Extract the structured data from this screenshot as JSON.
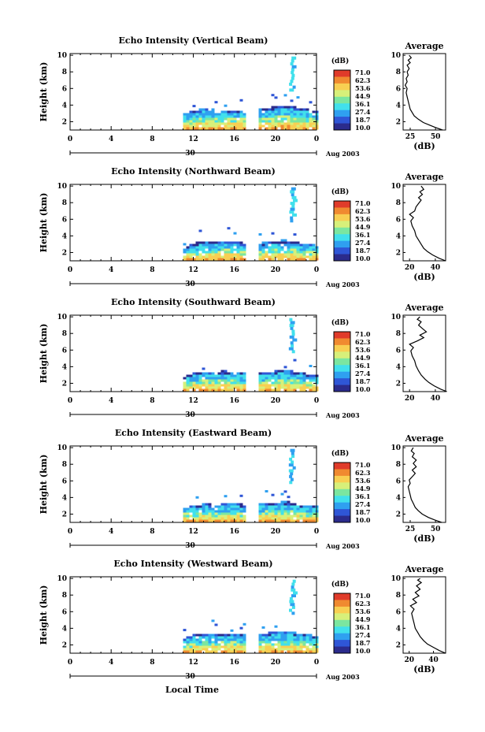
{
  "figure": {
    "xlabel": "Local Time",
    "date_label": "Aug 2003",
    "day_label": "30"
  },
  "colorbar": {
    "unit": "(dB)",
    "ticks": [
      "71.0",
      "62.3",
      "53.6",
      "44.9",
      "36.1",
      "27.4",
      "18.7",
      "10.0"
    ],
    "colors": [
      "#2b2b8c",
      "#2f56d6",
      "#2fa0f0",
      "#41e0ec",
      "#7be6a0",
      "#d7f07a",
      "#f8cf52",
      "#f08a30",
      "#e03b2a"
    ]
  },
  "chart_data": [
    {
      "type": "heatmap",
      "title": "Echo Intensity (Vertical Beam)",
      "ylabel": "Height (km)",
      "xticks": [
        "0",
        "4",
        "8",
        "12",
        "16",
        "20",
        "0"
      ],
      "yticks": [
        "2",
        "4",
        "6",
        "8",
        "10"
      ],
      "xlim": [
        0,
        24
      ],
      "ylim": [
        1,
        10.2
      ],
      "data_gap_hours": [
        17.0,
        18.1
      ],
      "echo_top_km": [
        [
          11.0,
          2.8
        ],
        [
          12.0,
          3.2
        ],
        [
          13.0,
          3.5
        ],
        [
          14.0,
          3.3
        ],
        [
          15.0,
          3.3
        ],
        [
          16.0,
          3.3
        ],
        [
          17.0,
          3.2
        ],
        [
          18.2,
          3.4
        ],
        [
          19.0,
          3.5
        ],
        [
          20.0,
          3.7
        ],
        [
          21.0,
          3.9
        ],
        [
          22.0,
          3.6
        ],
        [
          23.0,
          3.4
        ],
        [
          24.0,
          3.1
        ]
      ],
      "profile": {
        "title": "Average",
        "xlabel": "(dB)",
        "xticks": [
          "25",
          "50"
        ],
        "xlim": [
          18,
          60
        ],
        "ylim": [
          1,
          10.2
        ],
        "points": [
          [
            57,
            1.0
          ],
          [
            50,
            1.3
          ],
          [
            44,
            1.6
          ],
          [
            38,
            1.9
          ],
          [
            33,
            2.3
          ],
          [
            29,
            2.7
          ],
          [
            27,
            3.1
          ],
          [
            25,
            3.5
          ],
          [
            24,
            4.0
          ],
          [
            23,
            4.5
          ],
          [
            22,
            5.0
          ],
          [
            21,
            5.5
          ],
          [
            22,
            6.0
          ],
          [
            20,
            6.4
          ],
          [
            22,
            6.8
          ],
          [
            21,
            7.2
          ],
          [
            23,
            7.6
          ],
          [
            22,
            8.0
          ],
          [
            24,
            8.4
          ],
          [
            22,
            8.8
          ],
          [
            25,
            9.1
          ],
          [
            23,
            9.4
          ],
          [
            26,
            9.7
          ],
          [
            24,
            10.0
          ]
        ]
      }
    },
    {
      "type": "heatmap",
      "title": "Echo Intensity (Northward Beam)",
      "ylabel": "Height (km)",
      "xticks": [
        "0",
        "4",
        "8",
        "12",
        "16",
        "20",
        "0"
      ],
      "yticks": [
        "2",
        "4",
        "6",
        "8",
        "10"
      ],
      "xlim": [
        0,
        24
      ],
      "ylim": [
        1,
        10.2
      ],
      "data_gap_hours": [
        17.0,
        18.1
      ],
      "echo_top_km": [
        [
          11.0,
          2.6
        ],
        [
          12.0,
          3.0
        ],
        [
          13.0,
          3.2
        ],
        [
          14.0,
          3.1
        ],
        [
          15.0,
          3.2
        ],
        [
          16.0,
          3.1
        ],
        [
          17.0,
          3.0
        ],
        [
          18.2,
          3.0
        ],
        [
          19.0,
          3.1
        ],
        [
          20.0,
          3.3
        ],
        [
          21.0,
          3.4
        ],
        [
          22.0,
          3.1
        ],
        [
          23.0,
          2.9
        ],
        [
          24.0,
          2.7
        ]
      ],
      "profile": {
        "title": "Average",
        "xlabel": "(dB)",
        "xticks": [
          "20",
          "40"
        ],
        "xlim": [
          15,
          48
        ],
        "ylim": [
          1,
          10.2
        ],
        "points": [
          [
            48,
            1.0
          ],
          [
            43,
            1.3
          ],
          [
            38,
            1.7
          ],
          [
            34,
            2.1
          ],
          [
            31,
            2.5
          ],
          [
            29,
            3.0
          ],
          [
            27,
            3.5
          ],
          [
            25,
            4.0
          ],
          [
            24,
            4.6
          ],
          [
            22,
            5.2
          ],
          [
            21,
            5.8
          ],
          [
            23,
            6.2
          ],
          [
            20,
            6.6
          ],
          [
            24,
            7.0
          ],
          [
            25,
            7.5
          ],
          [
            27,
            7.9
          ],
          [
            29,
            8.3
          ],
          [
            27,
            8.6
          ],
          [
            30,
            9.0
          ],
          [
            28,
            9.3
          ],
          [
            31,
            9.6
          ],
          [
            29,
            10.0
          ]
        ]
      }
    },
    {
      "type": "heatmap",
      "title": "Echo Intensity (Southward Beam)",
      "ylabel": "Height (km)",
      "xticks": [
        "0",
        "4",
        "8",
        "12",
        "16",
        "20",
        "0"
      ],
      "yticks": [
        "2",
        "4",
        "6",
        "8",
        "10"
      ],
      "xlim": [
        0,
        24
      ],
      "ylim": [
        1,
        10.2
      ],
      "data_gap_hours": [
        17.0,
        18.1
      ],
      "echo_top_km": [
        [
          11.0,
          2.7
        ],
        [
          12.0,
          3.1
        ],
        [
          13.0,
          3.3
        ],
        [
          14.0,
          3.2
        ],
        [
          15.0,
          3.4
        ],
        [
          16.0,
          3.2
        ],
        [
          17.0,
          3.1
        ],
        [
          18.2,
          3.1
        ],
        [
          19.0,
          3.2
        ],
        [
          20.0,
          3.4
        ],
        [
          21.0,
          3.5
        ],
        [
          22.0,
          3.2
        ],
        [
          23.0,
          3.0
        ],
        [
          24.0,
          2.8
        ]
      ],
      "profile": {
        "title": "Average",
        "xlabel": "",
        "xticks": [
          "20",
          "40"
        ],
        "xlim": [
          15,
          48
        ],
        "ylim": [
          1,
          10.2
        ],
        "points": [
          [
            49,
            1.0
          ],
          [
            44,
            1.3
          ],
          [
            39,
            1.7
          ],
          [
            35,
            2.1
          ],
          [
            32,
            2.5
          ],
          [
            29,
            3.0
          ],
          [
            27,
            3.5
          ],
          [
            25,
            4.1
          ],
          [
            24,
            4.7
          ],
          [
            22,
            5.3
          ],
          [
            21,
            5.9
          ],
          [
            23,
            6.3
          ],
          [
            20,
            6.7
          ],
          [
            26,
            7.1
          ],
          [
            31,
            7.5
          ],
          [
            28,
            7.8
          ],
          [
            33,
            8.2
          ],
          [
            30,
            8.6
          ],
          [
            27,
            9.0
          ],
          [
            29,
            9.4
          ],
          [
            26,
            9.7
          ],
          [
            28,
            10.0
          ]
        ]
      }
    },
    {
      "type": "heatmap",
      "title": "Echo Intensity (Eastward Beam)",
      "ylabel": "Height (km)",
      "xticks": [
        "0",
        "4",
        "8",
        "12",
        "16",
        "20",
        "0"
      ],
      "yticks": [
        "2",
        "4",
        "6",
        "8",
        "10"
      ],
      "xlim": [
        0,
        24
      ],
      "ylim": [
        1,
        10.2
      ],
      "data_gap_hours": [
        17.0,
        18.1
      ],
      "echo_top_km": [
        [
          11.0,
          2.7
        ],
        [
          12.0,
          3.0
        ],
        [
          13.0,
          3.1
        ],
        [
          14.0,
          3.0
        ],
        [
          15.0,
          3.1
        ],
        [
          16.0,
          3.1
        ],
        [
          17.0,
          3.0
        ],
        [
          18.2,
          3.1
        ],
        [
          19.0,
          3.2
        ],
        [
          20.0,
          3.3
        ],
        [
          21.0,
          3.4
        ],
        [
          22.0,
          3.1
        ],
        [
          23.0,
          2.9
        ],
        [
          24.0,
          2.8
        ]
      ],
      "profile": {
        "title": "Average",
        "xlabel": "(dB)",
        "xticks": [
          "25",
          "50"
        ],
        "xlim": [
          18,
          60
        ],
        "ylim": [
          1,
          10.2
        ],
        "points": [
          [
            56,
            1.0
          ],
          [
            49,
            1.3
          ],
          [
            43,
            1.6
          ],
          [
            37,
            2.0
          ],
          [
            33,
            2.4
          ],
          [
            30,
            2.8
          ],
          [
            28,
            3.3
          ],
          [
            26,
            3.8
          ],
          [
            25,
            4.3
          ],
          [
            24,
            4.8
          ],
          [
            23,
            5.3
          ],
          [
            25,
            5.7
          ],
          [
            24,
            6.1
          ],
          [
            27,
            6.5
          ],
          [
            30,
            6.9
          ],
          [
            27,
            7.3
          ],
          [
            31,
            7.7
          ],
          [
            28,
            8.1
          ],
          [
            31,
            8.5
          ],
          [
            27,
            8.9
          ],
          [
            29,
            9.3
          ],
          [
            26,
            9.6
          ],
          [
            28,
            10.0
          ]
        ]
      }
    },
    {
      "type": "heatmap",
      "title": "Echo Intensity (Westward Beam)",
      "ylabel": "Height (km)",
      "xticks": [
        "0",
        "4",
        "8",
        "12",
        "16",
        "20",
        "0"
      ],
      "yticks": [
        "2",
        "4",
        "6",
        "8",
        "10"
      ],
      "xlim": [
        0,
        24
      ],
      "ylim": [
        1,
        10.2
      ],
      "data_gap_hours": [
        17.0,
        18.1
      ],
      "echo_top_km": [
        [
          11.0,
          2.7
        ],
        [
          12.0,
          3.1
        ],
        [
          13.0,
          3.2
        ],
        [
          14.0,
          3.1
        ],
        [
          15.0,
          3.2
        ],
        [
          16.0,
          3.2
        ],
        [
          17.0,
          3.1
        ],
        [
          18.2,
          3.2
        ],
        [
          19.0,
          3.3
        ],
        [
          20.0,
          3.5
        ],
        [
          21.0,
          3.6
        ],
        [
          22.0,
          3.3
        ],
        [
          23.0,
          3.1
        ],
        [
          24.0,
          2.9
        ]
      ],
      "profile": {
        "title": "Average",
        "xlabel": "(dB)",
        "xticks": [
          "20",
          "40"
        ],
        "xlim": [
          15,
          50
        ],
        "ylim": [
          1,
          10.2
        ],
        "points": [
          [
            50,
            1.0
          ],
          [
            45,
            1.3
          ],
          [
            40,
            1.7
          ],
          [
            35,
            2.1
          ],
          [
            32,
            2.5
          ],
          [
            29,
            3.0
          ],
          [
            27,
            3.5
          ],
          [
            25,
            4.0
          ],
          [
            24,
            4.6
          ],
          [
            23,
            5.2
          ],
          [
            22,
            5.8
          ],
          [
            24,
            6.3
          ],
          [
            21,
            6.7
          ],
          [
            26,
            7.1
          ],
          [
            23,
            7.5
          ],
          [
            28,
            7.9
          ],
          [
            25,
            8.3
          ],
          [
            29,
            8.7
          ],
          [
            26,
            9.1
          ],
          [
            30,
            9.5
          ],
          [
            27,
            9.8
          ],
          [
            29,
            10.0
          ]
        ]
      }
    }
  ]
}
